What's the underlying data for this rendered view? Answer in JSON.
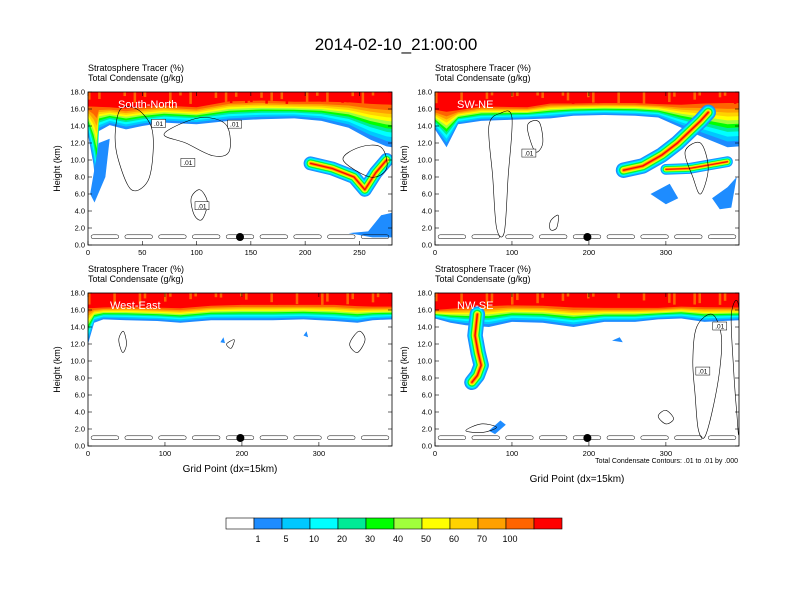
{
  "title": "2014-02-10_21:00:00",
  "footnote": "Total Condensate Contours: .01 to .01 by .000",
  "colorbar": {
    "colors": [
      "#ffffff",
      "#1e8cff",
      "#00c8ff",
      "#00ffff",
      "#00eb96",
      "#00ff00",
      "#a0ff3c",
      "#ffff00",
      "#ffd200",
      "#ffa000",
      "#ff6400",
      "#ff0000"
    ],
    "labels": [
      "1",
      "5",
      "10",
      "20",
      "30",
      "40",
      "50",
      "60",
      "70",
      "100"
    ]
  },
  "chart_data": [
    {
      "type": "heatmap",
      "subtitle_1": "Stratosphere Tracer   (%)",
      "subtitle_2": "Total Condensate   (g/kg)",
      "direction_label": "South-North",
      "ylabel": "Height (km)",
      "xlabel": "",
      "xlim": [
        0,
        280
      ],
      "ylim": [
        0,
        18
      ],
      "x_ticks": [
        "0",
        "50",
        "100",
        "150",
        "200",
        "250"
      ],
      "x_tick_values": [
        0,
        50,
        100,
        150,
        200,
        250
      ],
      "y_ticks": [
        "0.0",
        "2.0",
        "4.0",
        "6.0",
        "8.0",
        "10.0",
        "12.0",
        "14.0",
        "16.0",
        "18.0"
      ],
      "marker_x": 140,
      "contour_labels": [
        ".01",
        ".01",
        ".01",
        ".01"
      ]
    },
    {
      "type": "heatmap",
      "subtitle_1": "Stratosphere Tracer   (%)",
      "subtitle_2": "Total Condensate   (g/kg)",
      "direction_label": "SW-NE",
      "ylabel": "Height (km)",
      "xlabel": "",
      "xlim": [
        0,
        395
      ],
      "ylim": [
        0,
        18
      ],
      "x_ticks": [
        "0",
        "100",
        "200",
        "300"
      ],
      "x_tick_values": [
        0,
        100,
        200,
        300
      ],
      "y_ticks": [
        "0.0",
        "2.0",
        "4.0",
        "6.0",
        "8.0",
        "10.0",
        "12.0",
        "14.0",
        "16.0",
        "18.0"
      ],
      "marker_x": 198,
      "contour_labels": [
        ".01"
      ]
    },
    {
      "type": "heatmap",
      "subtitle_1": "Stratosphere Tracer   (%)",
      "subtitle_2": "Total Condensate   (g/kg)",
      "direction_label": "West-East",
      "ylabel": "Height (km)",
      "xlabel": "Grid Point (dx=15km)",
      "xlim": [
        0,
        395
      ],
      "ylim": [
        0,
        18
      ],
      "x_ticks": [
        "0",
        "100",
        "200",
        "300"
      ],
      "x_tick_values": [
        0,
        100,
        200,
        300
      ],
      "y_ticks": [
        "0.0",
        "2.0",
        "4.0",
        "6.0",
        "8.0",
        "10.0",
        "12.0",
        "14.0",
        "16.0",
        "18.0"
      ],
      "marker_x": 198,
      "contour_labels": []
    },
    {
      "type": "heatmap",
      "subtitle_1": "Stratosphere Tracer   (%)",
      "subtitle_2": "Total Condensate   (g/kg)",
      "direction_label": "NW-SE",
      "ylabel": "Height (km)",
      "xlabel": "Grid Point (dx=15km)",
      "xlim": [
        0,
        395
      ],
      "ylim": [
        0,
        18
      ],
      "x_ticks": [
        "0",
        "100",
        "200",
        "300"
      ],
      "x_tick_values": [
        0,
        100,
        200,
        300
      ],
      "y_ticks": [
        "0.0",
        "2.0",
        "4.0",
        "6.0",
        "8.0",
        "10.0",
        "12.0",
        "14.0",
        "16.0",
        "18.0"
      ],
      "marker_x": 198,
      "contour_labels": [
        ".01",
        ".01"
      ]
    }
  ]
}
